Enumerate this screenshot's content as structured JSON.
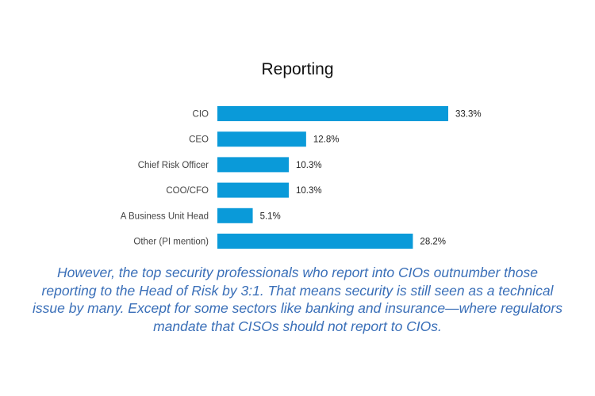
{
  "chart_data": {
    "type": "bar",
    "orientation": "horizontal",
    "title": "Reporting",
    "categories": [
      "CIO",
      "CEO",
      "Chief Risk Officer",
      "COO/CFO",
      "A Business Unit Head",
      "Other (PI mention)"
    ],
    "values": [
      33.3,
      12.8,
      10.3,
      10.3,
      5.1,
      28.2
    ],
    "value_labels": [
      "33.3%",
      "12.8%",
      "10.3%",
      "10.3%",
      "5.1%",
      "28.2%"
    ],
    "xlabel": "",
    "ylabel": "",
    "xlim": [
      0,
      33.3
    ],
    "grid": false,
    "legend": "none",
    "bar_color": "#0a9ad9"
  },
  "caption": "However, the top security professionals who report into CIOs outnumber those reporting to the Head of Risk by 3:1. That means security is still seen as a technical issue by many. Except for some sectors like banking and insurance—where regulators mandate that CISOs should not report to CIOs."
}
